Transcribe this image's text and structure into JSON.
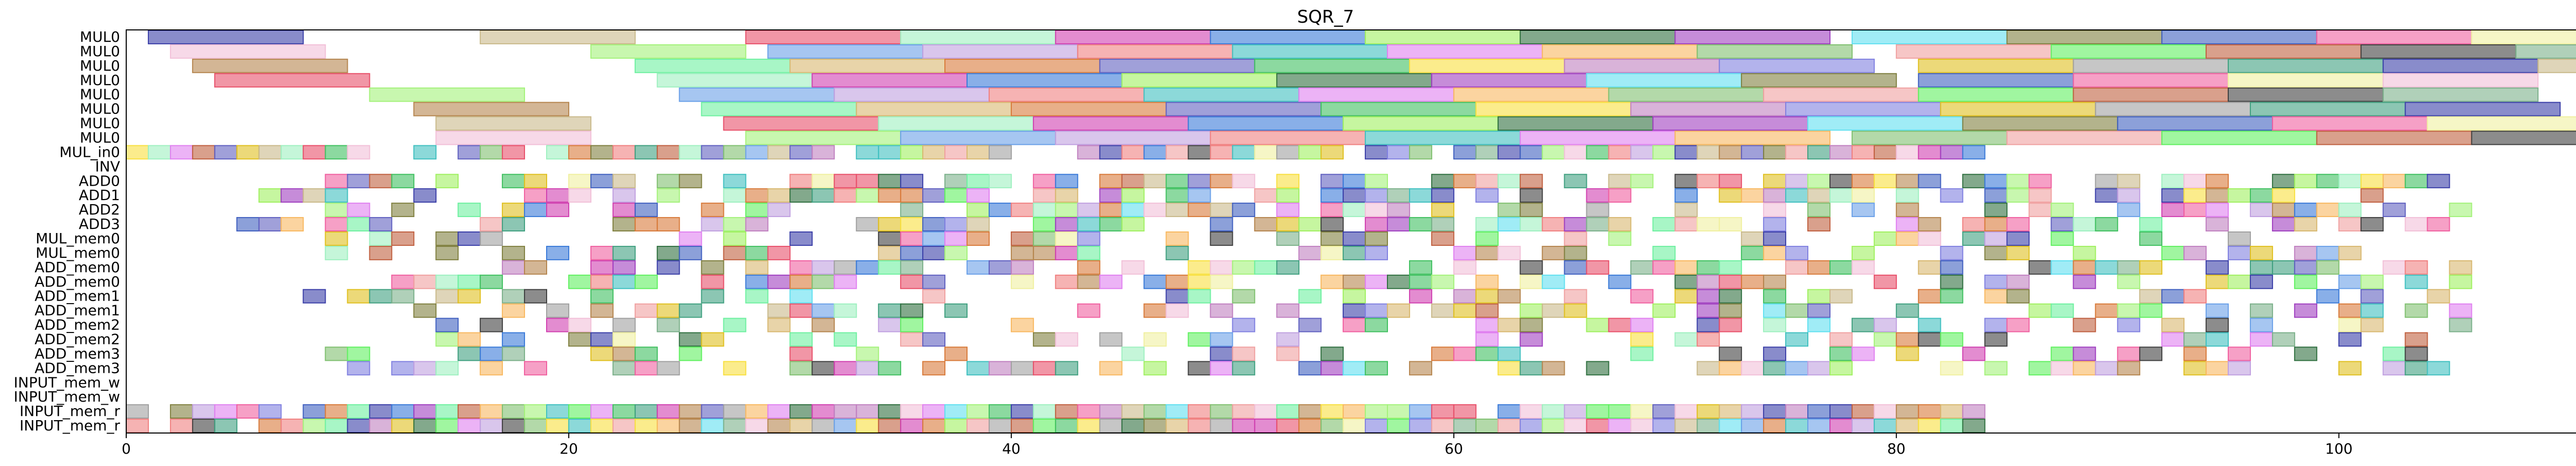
{
  "chart_data": {
    "type": "gantt",
    "title": "SQR_7",
    "xlabel": "",
    "ylabel": "",
    "xlim": [
      0,
      114
    ],
    "xticks": [
      0,
      20,
      40,
      60,
      80,
      100
    ],
    "rows": [
      "MUL0",
      "MUL0",
      "MUL0",
      "MUL0",
      "MUL0",
      "MUL0",
      "MUL0",
      "MUL0",
      "MUL_in0",
      "INV",
      "ADD0",
      "ADD1",
      "ADD2",
      "ADD3",
      "MUL_mem0",
      "MUL_mem0",
      "ADD_mem0",
      "ADD_mem0",
      "ADD_mem1",
      "ADD_mem1",
      "ADD_mem2",
      "ADD_mem2",
      "ADD_mem3",
      "ADD_mem3",
      "INPUT_mem_w",
      "INPUT_mem_w",
      "INPUT_mem_r",
      "INPUT_mem_r"
    ],
    "mul_tasks": [
      {
        "row": 0,
        "segments": [
          [
            1,
            8
          ],
          [
            16,
            23
          ],
          [
            28,
            35
          ],
          [
            35,
            42
          ],
          [
            42,
            49
          ],
          [
            49,
            56
          ],
          [
            56,
            63
          ],
          [
            63,
            70
          ],
          [
            70,
            77
          ],
          [
            78,
            85
          ],
          [
            85,
            92
          ],
          [
            92,
            99
          ],
          [
            99,
            106
          ],
          [
            106,
            113
          ]
        ]
      },
      {
        "row": 1,
        "segments": [
          [
            2,
            9
          ],
          [
            21,
            28
          ],
          [
            29,
            36
          ],
          [
            36,
            43
          ],
          [
            43,
            50
          ],
          [
            50,
            57
          ],
          [
            57,
            64
          ],
          [
            64,
            71
          ],
          [
            71,
            78
          ],
          [
            80,
            87
          ],
          [
            87,
            94
          ],
          [
            94,
            101
          ],
          [
            101,
            108
          ],
          [
            108,
            114
          ]
        ]
      },
      {
        "row": 2,
        "segments": [
          [
            3,
            10
          ],
          [
            23,
            30
          ],
          [
            30,
            37
          ],
          [
            37,
            44
          ],
          [
            44,
            51
          ],
          [
            51,
            58
          ],
          [
            58,
            65
          ],
          [
            65,
            72
          ],
          [
            72,
            79
          ],
          [
            81,
            88
          ],
          [
            88,
            95
          ],
          [
            95,
            102
          ],
          [
            102,
            109
          ],
          [
            109,
            114
          ]
        ]
      },
      {
        "row": 3,
        "segments": [
          [
            4,
            11
          ],
          [
            24,
            31
          ],
          [
            31,
            38
          ],
          [
            38,
            45
          ],
          [
            45,
            52
          ],
          [
            52,
            59
          ],
          [
            59,
            66
          ],
          [
            66,
            73
          ],
          [
            73,
            80
          ],
          [
            81,
            88
          ],
          [
            88,
            95
          ],
          [
            95,
            102
          ],
          [
            102,
            109
          ]
        ]
      },
      {
        "row": 4,
        "segments": [
          [
            11,
            18
          ],
          [
            25,
            32
          ],
          [
            32,
            39
          ],
          [
            39,
            46
          ],
          [
            46,
            53
          ],
          [
            53,
            60
          ],
          [
            60,
            67
          ],
          [
            67,
            74
          ],
          [
            74,
            81
          ],
          [
            81,
            88
          ],
          [
            88,
            95
          ],
          [
            95,
            102
          ],
          [
            102,
            109
          ]
        ]
      },
      {
        "row": 5,
        "segments": [
          [
            13,
            20
          ],
          [
            26,
            33
          ],
          [
            33,
            40
          ],
          [
            40,
            47
          ],
          [
            47,
            54
          ],
          [
            54,
            61
          ],
          [
            61,
            68
          ],
          [
            68,
            75
          ],
          [
            75,
            82
          ],
          [
            82,
            89
          ],
          [
            89,
            96
          ],
          [
            96,
            103
          ],
          [
            103,
            110
          ]
        ]
      },
      {
        "row": 6,
        "segments": [
          [
            14,
            21
          ],
          [
            27,
            34
          ],
          [
            34,
            41
          ],
          [
            41,
            48
          ],
          [
            48,
            55
          ],
          [
            55,
            62
          ],
          [
            62,
            69
          ],
          [
            69,
            76
          ],
          [
            76,
            83
          ],
          [
            83,
            90
          ],
          [
            90,
            97
          ],
          [
            97,
            104
          ],
          [
            104,
            111
          ]
        ]
      },
      {
        "row": 7,
        "segments": [
          [
            14,
            21
          ],
          [
            28,
            35
          ],
          [
            35,
            42
          ],
          [
            42,
            49
          ],
          [
            49,
            56
          ],
          [
            56,
            63
          ],
          [
            63,
            70
          ],
          [
            70,
            77
          ],
          [
            78,
            85
          ],
          [
            85,
            92
          ],
          [
            92,
            99
          ],
          [
            99,
            106
          ],
          [
            106,
            113
          ]
        ]
      }
    ],
    "grid_rows": [
      {
        "row": 8,
        "start": 0,
        "end": 84,
        "density": 0.85
      },
      {
        "row": 10,
        "start": 9,
        "end": 105,
        "density": 0.72
      },
      {
        "row": 11,
        "start": 6,
        "end": 103,
        "density": 0.62
      },
      {
        "row": 12,
        "start": 8,
        "end": 107,
        "density": 0.62
      },
      {
        "row": 13,
        "start": 5,
        "end": 106,
        "density": 0.6
      },
      {
        "row": 14,
        "start": 8,
        "end": 97,
        "density": 0.45
      },
      {
        "row": 15,
        "start": 8,
        "end": 105,
        "density": 0.48
      },
      {
        "row": 16,
        "start": 9,
        "end": 106,
        "density": 0.45
      },
      {
        "row": 17,
        "start": 12,
        "end": 106,
        "density": 0.5
      },
      {
        "row": 18,
        "start": 8,
        "end": 107,
        "density": 0.4
      },
      {
        "row": 19,
        "start": 12,
        "end": 107,
        "density": 0.48
      },
      {
        "row": 20,
        "start": 12,
        "end": 106,
        "density": 0.35
      },
      {
        "row": 21,
        "start": 12,
        "end": 105,
        "density": 0.45
      },
      {
        "row": 22,
        "start": 9,
        "end": 104,
        "density": 0.42
      },
      {
        "row": 23,
        "start": 9,
        "end": 105,
        "density": 0.55
      },
      {
        "row": 26,
        "start": 0,
        "end": 84,
        "density": 0.97
      },
      {
        "row": 27,
        "start": 0,
        "end": 84,
        "density": 0.97
      }
    ],
    "palette": [
      "#3b3fa8",
      "#7bb08a",
      "#f2c0d8",
      "#c9b98a",
      "#b5854e",
      "#a4f27a",
      "#e8506a",
      "#6ef0a0",
      "#6aa0e8",
      "#9ef0c0",
      "#d8b870",
      "#c0a0e0",
      "#d040b0",
      "#d87a3a",
      "#f08080",
      "#3a7ad8",
      "#6060c0",
      "#40c0c0",
      "#a0f060",
      "#40c060",
      "#e080f0",
      "#307040",
      "#f8e040",
      "#f8b860",
      "#a040c0",
      "#c080c0",
      "#80c070",
      "#60e0f0",
      "#8080e0",
      "#f0a0a0",
      "#808040",
      "#e0c020",
      "#60f060",
      "#4060c0",
      "#a0a0a0",
      "#c06040",
      "#f060a0",
      "#40a080",
      "#404040",
      "#f0f0a0"
    ]
  }
}
